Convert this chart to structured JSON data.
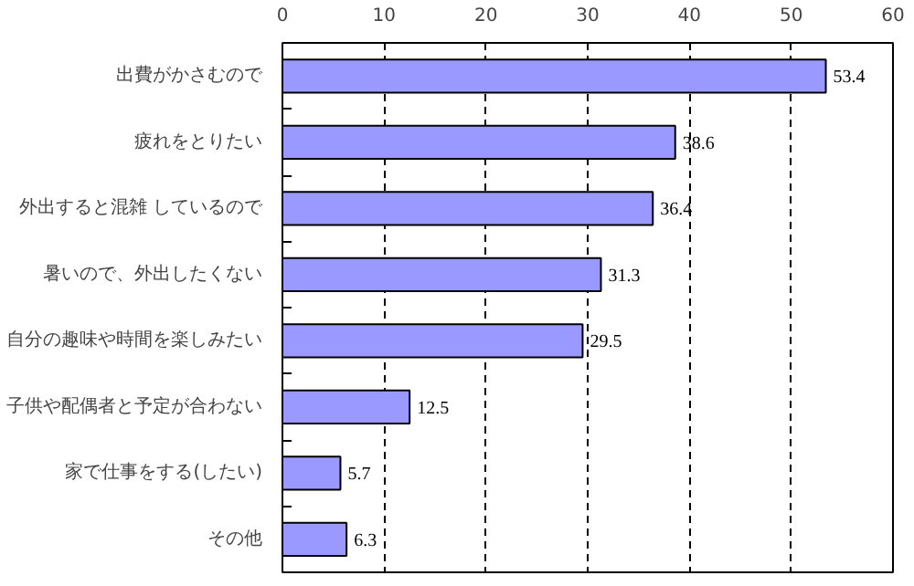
{
  "chart_data": {
    "type": "bar",
    "orientation": "horizontal",
    "categories": [
      "出費がかさむので",
      "疲れをとりたい",
      "外出すると混雑 しているので",
      "暑いので、外出したくない",
      "自分の趣味や時間を楽しみたい",
      "子供や配偶者と予定が合わない",
      "家で仕事をする(したい)",
      "その他"
    ],
    "values": [
      53.4,
      38.6,
      36.4,
      31.3,
      29.5,
      12.5,
      5.7,
      6.3
    ],
    "color": "#9999ff",
    "data_labels": true,
    "xlim": [
      0,
      60
    ],
    "xticks": [
      0,
      10,
      20,
      30,
      40,
      50,
      60
    ],
    "grid": "x"
  }
}
